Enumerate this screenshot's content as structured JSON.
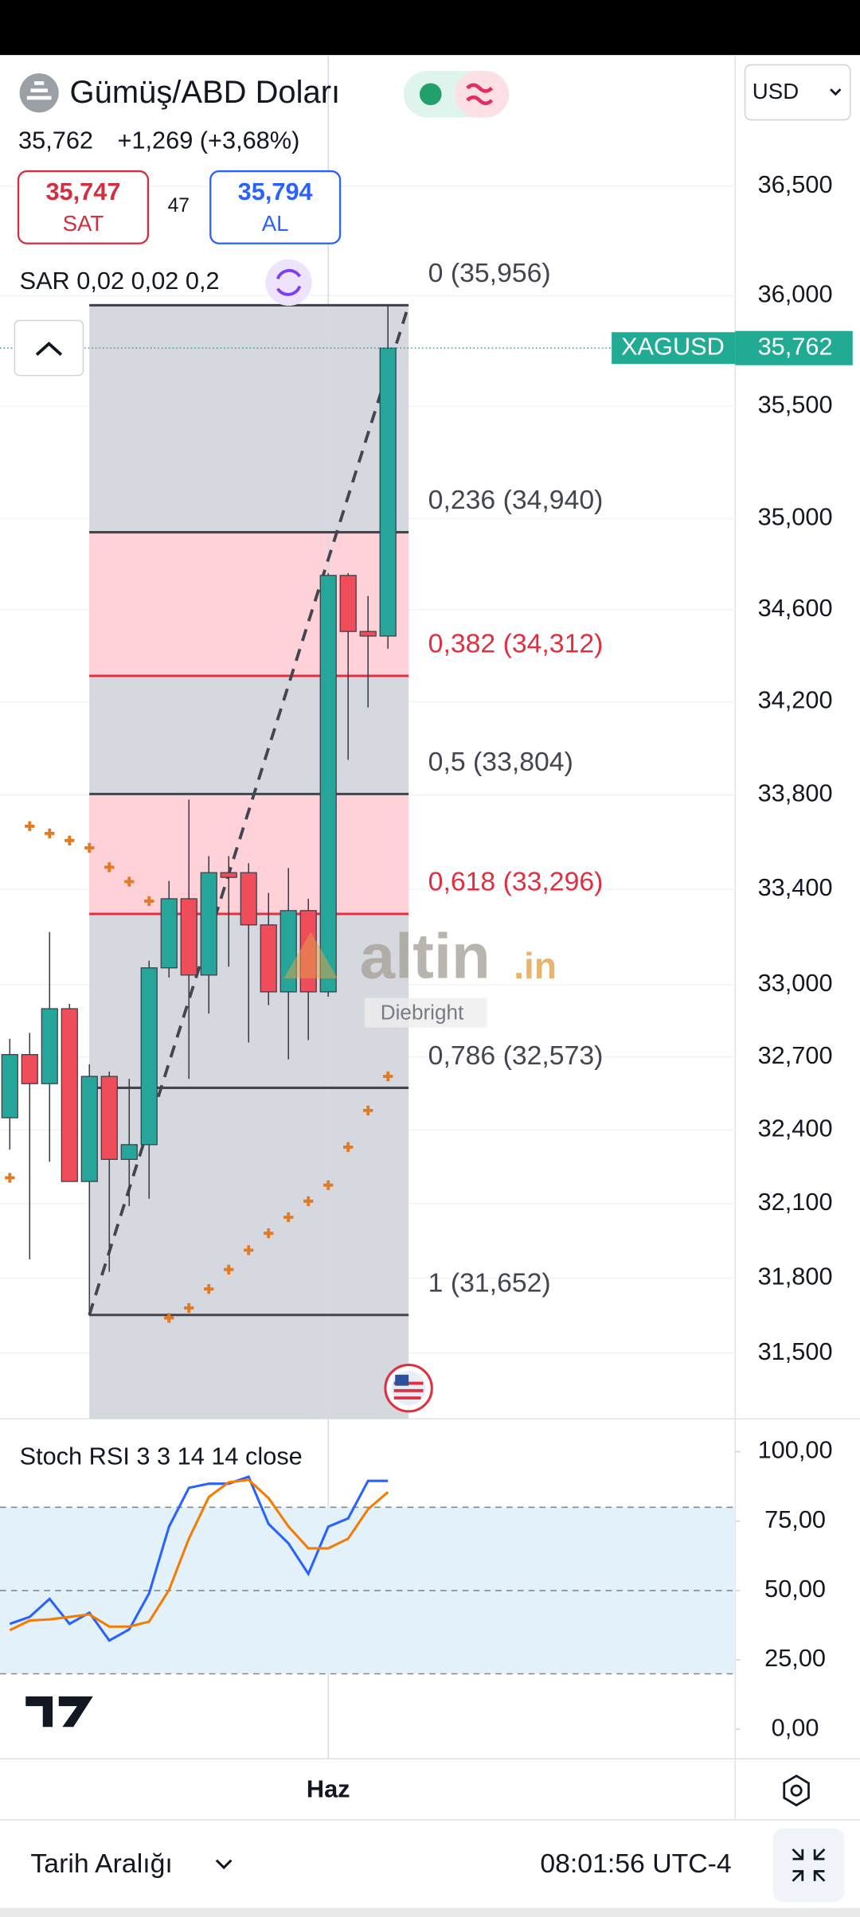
{
  "header": {
    "title": "Gümüş/ABD Doları",
    "price": "35,762",
    "change": "+1,269 (+3,68%)",
    "sell_price": "35,747",
    "sell_label": "SAT",
    "spread": "47",
    "buy_price": "35,794",
    "buy_label": "AL",
    "currency": "USD",
    "indicator": "SAR 0,02 0,02 0,2"
  },
  "watermark": {
    "brand": "altin",
    "suffix": ".in",
    "author": "Diebright"
  },
  "chart_data": [
    {
      "type": "candlestick",
      "symbol": "XAGUSD",
      "log_scale": true,
      "grid": true,
      "ylim": [
        31240,
        37110
      ],
      "yticks": [
        {
          "value": 36500,
          "label": "36,500"
        },
        {
          "value": 36000,
          "label": "36,000"
        },
        {
          "value": 35500,
          "label": "35,500"
        },
        {
          "value": 35000,
          "label": "35,000"
        },
        {
          "value": 34600,
          "label": "34,600"
        },
        {
          "value": 34200,
          "label": "34,200"
        },
        {
          "value": 33800,
          "label": "33,800"
        },
        {
          "value": 33400,
          "label": "33,400"
        },
        {
          "value": 33000,
          "label": "33,000"
        },
        {
          "value": 32700,
          "label": "32,700"
        },
        {
          "value": 32400,
          "label": "32,400"
        },
        {
          "value": 32100,
          "label": "32,100"
        },
        {
          "value": 31800,
          "label": "31,800"
        },
        {
          "value": 31500,
          "label": "31,500"
        }
      ],
      "categories": [
        null,
        null,
        null,
        null,
        null,
        null,
        null,
        null,
        null,
        null,
        null,
        null,
        null,
        null,
        null,
        null,
        "Haz",
        null,
        null,
        null
      ],
      "open": [
        32450,
        32710,
        32590,
        32900,
        32190,
        32620,
        32280,
        32340,
        33070,
        33360,
        33040,
        33470,
        33470,
        33250,
        32970,
        33310,
        32970,
        34750,
        34505,
        34485
      ],
      "high": [
        32775,
        32800,
        33220,
        32920,
        32670,
        32640,
        32610,
        33100,
        33435,
        33780,
        33540,
        33540,
        33510,
        33385,
        33490,
        33360,
        34760,
        34760,
        34660,
        35956
      ],
      "low": [
        32320,
        31875,
        32270,
        32190,
        31650,
        31825,
        32090,
        32120,
        33030,
        32610,
        32880,
        33075,
        32760,
        32915,
        32690,
        32770,
        32950,
        33950,
        34175,
        34430
      ],
      "close": [
        32710,
        32590,
        32900,
        32190,
        32620,
        32280,
        32340,
        33070,
        33360,
        33040,
        33470,
        33450,
        33250,
        32970,
        33310,
        32970,
        34750,
        34505,
        34485,
        35762
      ],
      "up_color": "#26a69a",
      "down_color": "#ef4d5a",
      "sar": {
        "color": "#e07b24",
        "values": [
          32205,
          33667,
          33636,
          33606,
          33575,
          33493,
          33432,
          33350,
          31640,
          31680,
          31756,
          31834,
          31912,
          31980,
          32045,
          32110,
          32175,
          32330,
          32480,
          32620
        ]
      },
      "fibonacci": {
        "values": [
          35956,
          34940,
          34312,
          33804,
          33296,
          32573,
          31652
        ],
        "value_labels": [
          "0 (35,956)",
          "0,236 (34,940)",
          "0,382 (34,312)",
          "0,5 (33,804)",
          "0,618 (33,296)",
          "0,786 (32,573)",
          "1 (31,652)"
        ],
        "colors": [
          "#434651",
          "#434651",
          "#e03040",
          "#434651",
          "#e03040",
          "#434651",
          "#434651"
        ]
      },
      "last_price": {
        "value": 35762,
        "label": "35,762"
      }
    },
    {
      "type": "line",
      "title": "Stoch RSI 3 3 14 14 close",
      "ylim": [
        -10.6,
        111.9
      ],
      "yticks": [
        {
          "value": 100,
          "label": "100,00"
        },
        {
          "value": 75,
          "label": "75,00"
        },
        {
          "value": 50,
          "label": "50,00"
        },
        {
          "value": 25,
          "label": "25,00"
        },
        {
          "value": 0,
          "label": "0,00"
        }
      ],
      "levels": [
        80,
        50,
        20
      ],
      "series": [
        {
          "color": "#2962ff",
          "values": [
            38,
            40.5,
            47,
            38,
            42,
            32,
            36,
            49,
            73,
            87,
            88.5,
            88.5,
            91,
            74,
            67,
            56,
            73,
            76,
            89.5,
            89.5
          ]
        },
        {
          "color": "#f57c00",
          "values": [
            35.7,
            39.2,
            39.6,
            40.5,
            41.4,
            37,
            37,
            38.8,
            50.2,
            68.7,
            83.7,
            89,
            89.9,
            83.3,
            73.1,
            65.2,
            65.2,
            68.7,
            79.3,
            85.5
          ]
        }
      ]
    }
  ],
  "footer": {
    "range_label": "Tarih Aralığı",
    "time": "08:01:56 UTC-4"
  }
}
